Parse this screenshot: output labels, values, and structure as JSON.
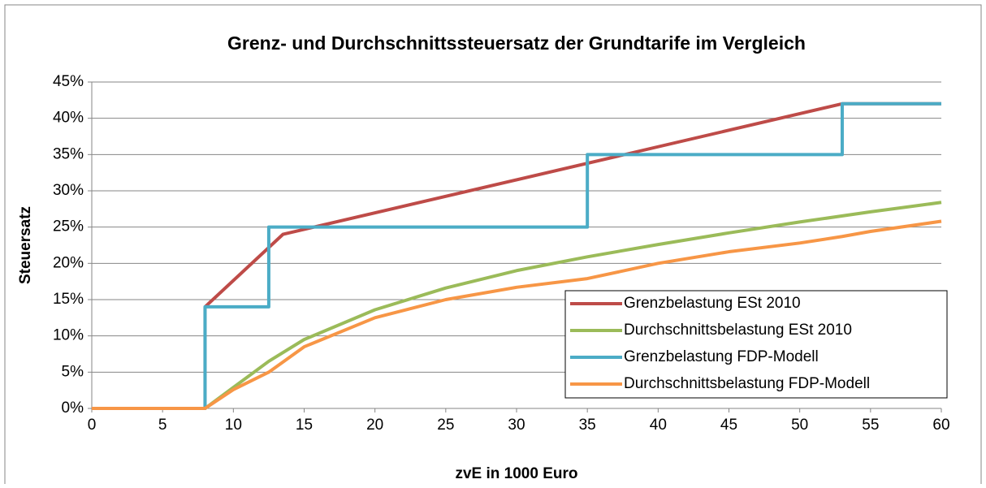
{
  "chart_data": {
    "type": "line",
    "title": "Grenz- und Durchschnittssteuersatz der Grundtarife im Vergleich",
    "xlabel": "zvE in 1000 Euro",
    "ylabel": "Steuersatz",
    "xlim": [
      0,
      60
    ],
    "xticks": [
      0,
      5,
      10,
      15,
      20,
      25,
      30,
      35,
      40,
      45,
      50,
      55,
      60
    ],
    "ylim": [
      0,
      45
    ],
    "yticks": [
      {
        "value": 0,
        "label": "0%"
      },
      {
        "value": 5,
        "label": "5%"
      },
      {
        "value": 10,
        "label": "10%"
      },
      {
        "value": 15,
        "label": "15%"
      },
      {
        "value": 20,
        "label": "20%"
      },
      {
        "value": 25,
        "label": "25%"
      },
      {
        "value": 30,
        "label": "30%"
      },
      {
        "value": 35,
        "label": "35%"
      },
      {
        "value": 40,
        "label": "40%"
      },
      {
        "value": 45,
        "label": "45%"
      }
    ],
    "grid": true,
    "legend": "lower right",
    "series": [
      {
        "name": "Grenzbelastung ESt 2010",
        "color": "#be4b48",
        "x": [
          0,
          8,
          8,
          13.5,
          53,
          60
        ],
        "values": [
          0,
          0,
          14,
          24,
          42,
          42
        ]
      },
      {
        "name": "Durchschnittsbelastung ESt 2010",
        "color": "#9bbb59",
        "x": [
          0,
          8,
          10,
          12.5,
          15,
          20,
          25,
          30,
          35,
          40,
          45,
          50,
          55,
          60
        ],
        "values": [
          0,
          0,
          2.9,
          6.5,
          9.5,
          13.6,
          16.6,
          19,
          20.9,
          22.6,
          24.2,
          25.7,
          27.1,
          28.4
        ]
      },
      {
        "name": "Grenzbelastung FDP-Modell",
        "color": "#4bacc6",
        "x": [
          0,
          8,
          8,
          12.5,
          12.5,
          35,
          35,
          53,
          53,
          60
        ],
        "values": [
          0,
          0,
          14,
          14,
          25,
          25,
          35,
          35,
          42,
          42
        ]
      },
      {
        "name": "Durchschnittsbelastung FDP-Modell",
        "color": "#f79646",
        "x": [
          0,
          8,
          10,
          12.5,
          15,
          20,
          25,
          30,
          35,
          40,
          45,
          50,
          53,
          55,
          60
        ],
        "values": [
          0,
          0,
          2.6,
          5,
          8.5,
          12.5,
          15,
          16.7,
          17.9,
          20,
          21.6,
          22.8,
          23.7,
          24.4,
          25.8
        ]
      }
    ]
  }
}
